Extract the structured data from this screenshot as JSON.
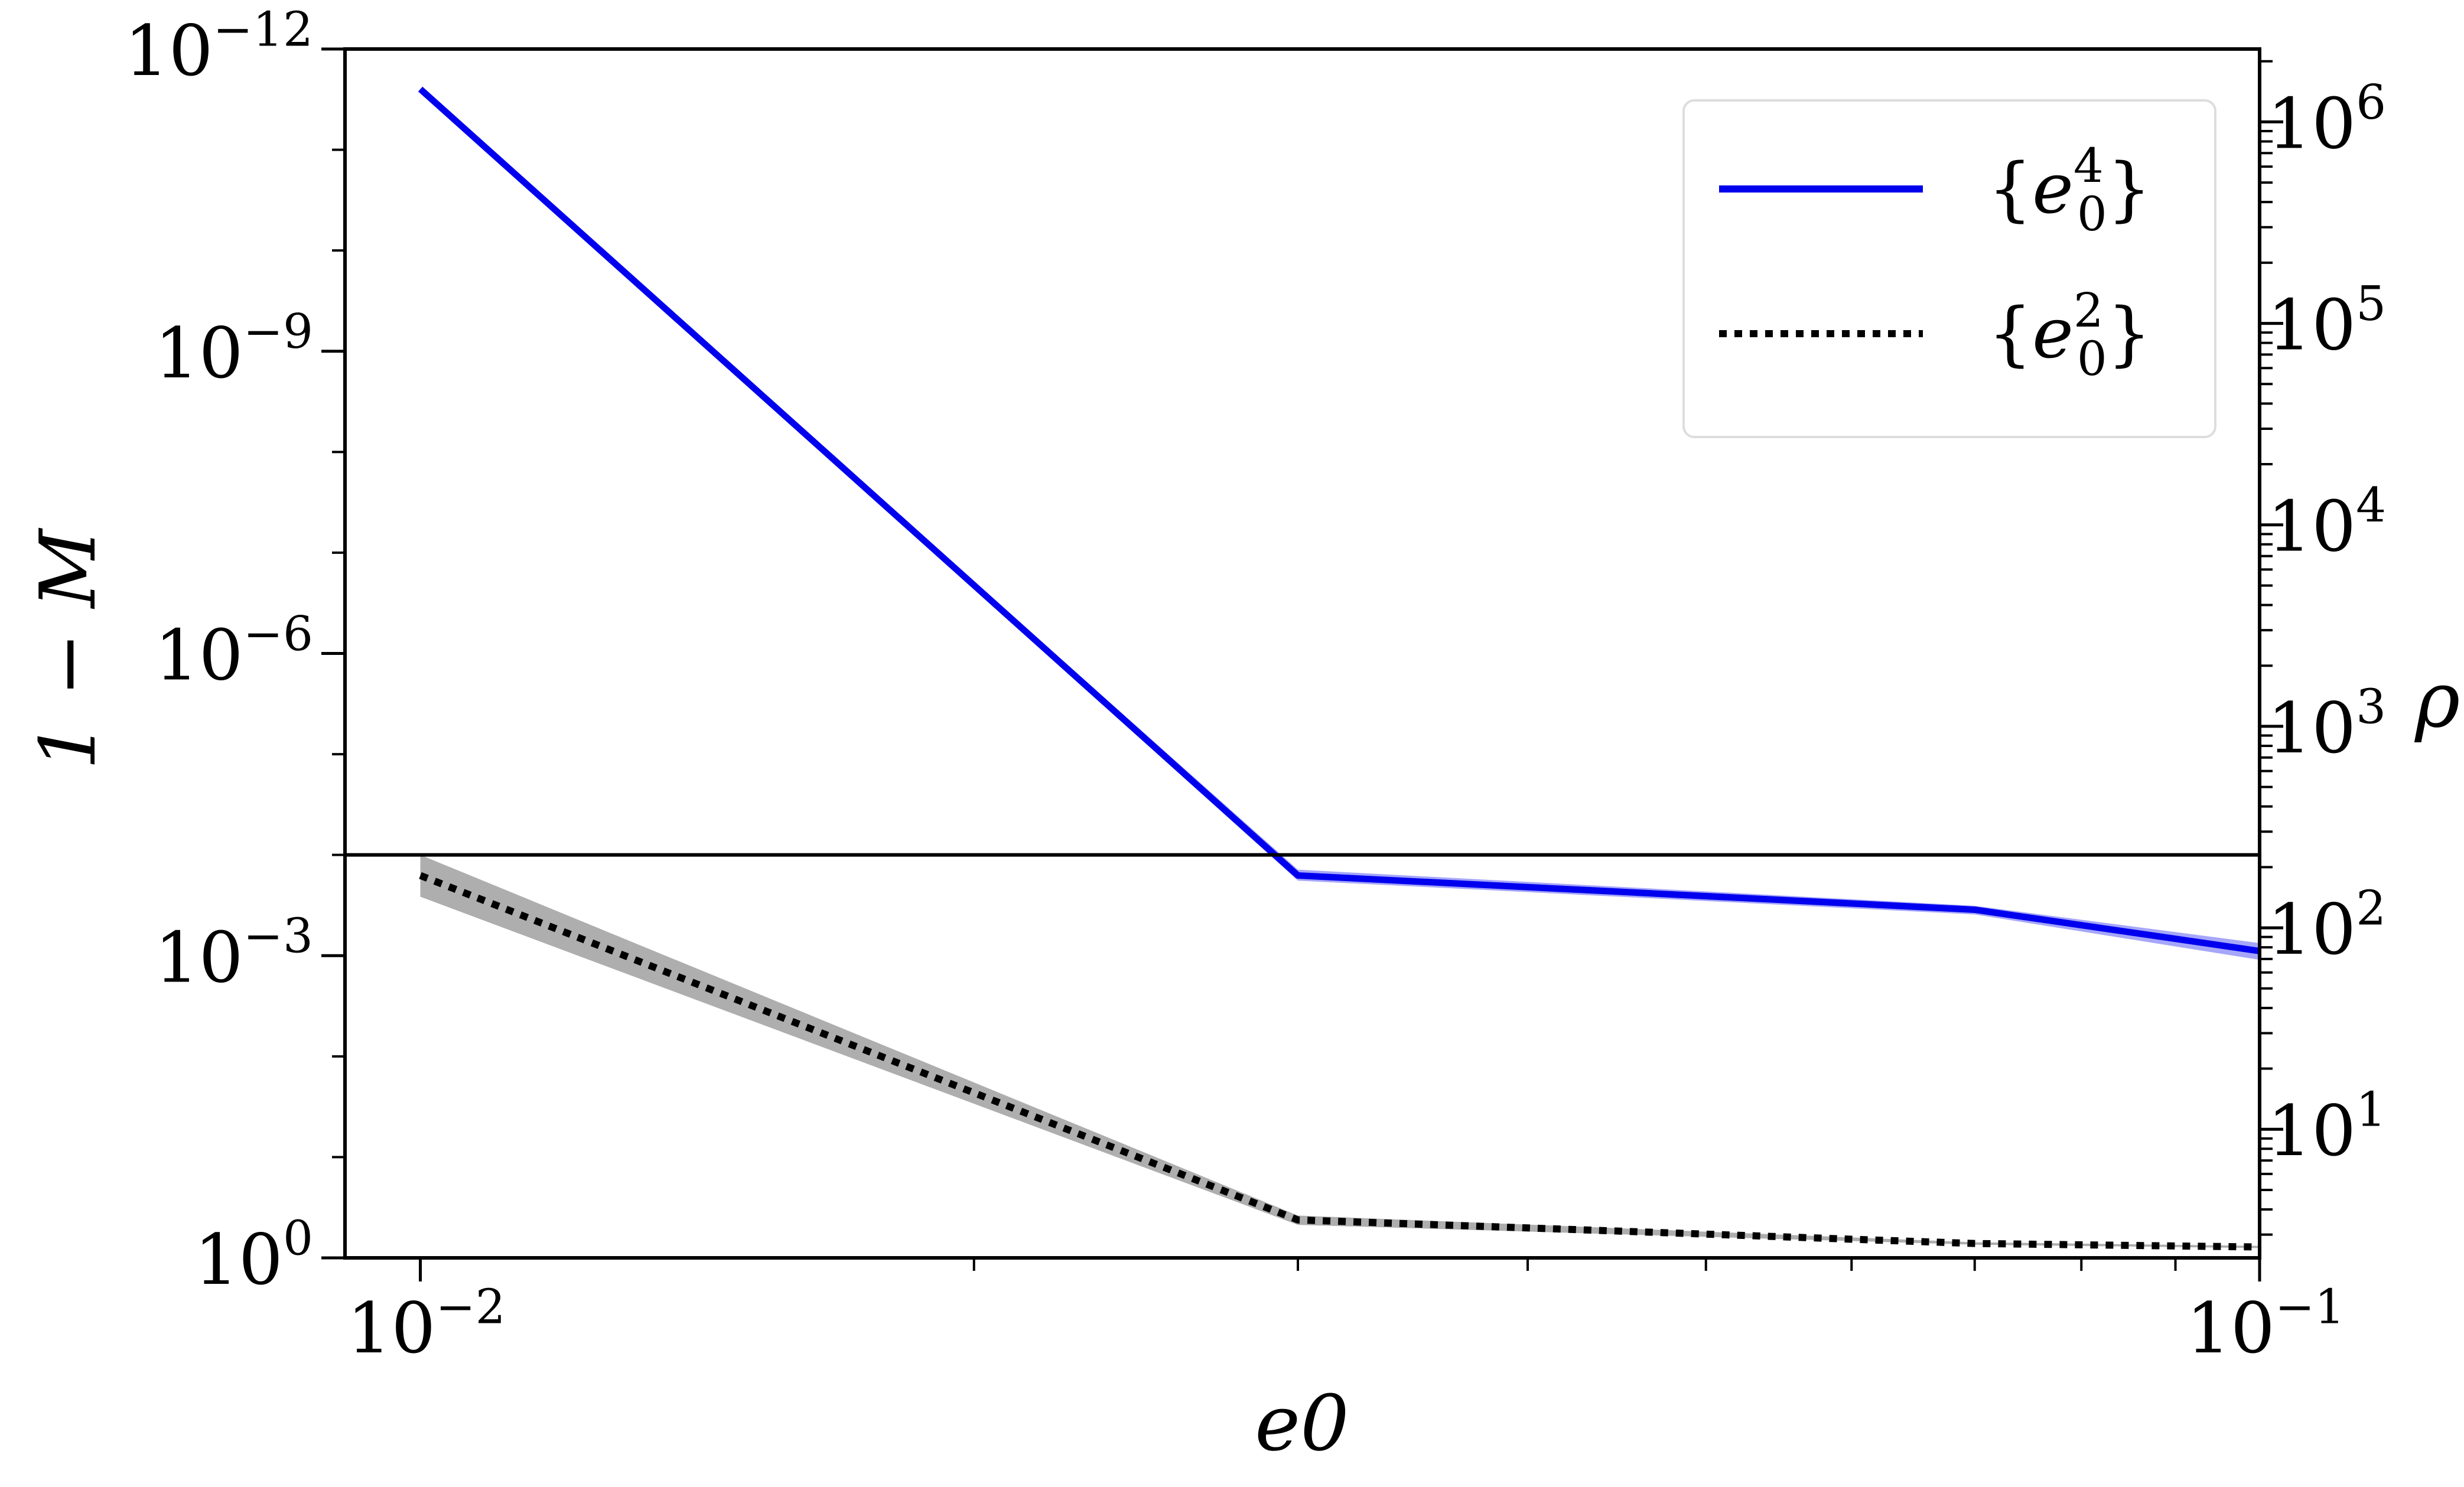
{
  "chart_data": {
    "type": "line",
    "title": "",
    "x_scale": "log",
    "xlim": [
      0.0091,
      0.1
    ],
    "y_scale": "log",
    "y_axis_inverted": true,
    "ylim": [
      1.0,
      1e-12
    ],
    "y2_scale": "log",
    "y2lim": [
      2.3,
      2300000
    ],
    "grid": false,
    "legend_position": "top-right",
    "xlabel": "e_0",
    "ylabel": "1 − M",
    "y2label": "ρ",
    "x_ticks": [
      {
        "value": 0.01,
        "base": "10",
        "exp": "−2"
      },
      {
        "value": 0.1,
        "base": "10",
        "exp": "−1"
      }
    ],
    "y_ticks": [
      {
        "value": 1e-12,
        "base": "10",
        "exp": "−12"
      },
      {
        "value": 1e-09,
        "base": "10",
        "exp": "−9"
      },
      {
        "value": 1e-06,
        "base": "10",
        "exp": "−6"
      },
      {
        "value": 0.001,
        "base": "10",
        "exp": "−3"
      },
      {
        "value": 1,
        "base": "10",
        "exp": "0"
      }
    ],
    "y2_ticks": [
      {
        "value": 10,
        "base": "10",
        "exp": "1"
      },
      {
        "value": 100,
        "base": "10",
        "exp": "2"
      },
      {
        "value": 1000,
        "base": "10",
        "exp": "3"
      },
      {
        "value": 10000,
        "base": "10",
        "exp": "4"
      },
      {
        "value": 100000,
        "base": "10",
        "exp": "5"
      },
      {
        "value": 1000000,
        "base": "10",
        "exp": "6"
      }
    ],
    "hline": {
      "y": 0.0001
    },
    "series": [
      {
        "name": "{e_0^4}",
        "legend_base": "e",
        "legend_sub": "0",
        "legend_sup": "4",
        "color": "#0000ee",
        "style": "solid",
        "x": [
          0.01,
          0.03,
          0.07,
          0.1
        ],
        "y": [
          2.5e-12,
          0.00016,
          0.00035,
          0.0009
        ],
        "band": [
          [
            2.5e-12,
            2.5e-12
          ],
          [
            0.00014,
            0.00018
          ],
          [
            0.00032,
            0.00039
          ],
          [
            0.00075,
            0.0011
          ]
        ]
      },
      {
        "name": "{e_0^2}",
        "legend_base": "e",
        "legend_sub": "0",
        "legend_sup": "2",
        "color": "#000000",
        "band_color": "#aaaaaa",
        "style": "dotted",
        "x": [
          0.01,
          0.03,
          0.07,
          0.1
        ],
        "y": [
          0.00016,
          0.42,
          0.72,
          0.78
        ],
        "band": [
          [
            0.0001,
            0.00026
          ],
          [
            0.38,
            0.47
          ],
          [
            0.7,
            0.74
          ],
          [
            0.76,
            0.8
          ]
        ]
      }
    ]
  }
}
